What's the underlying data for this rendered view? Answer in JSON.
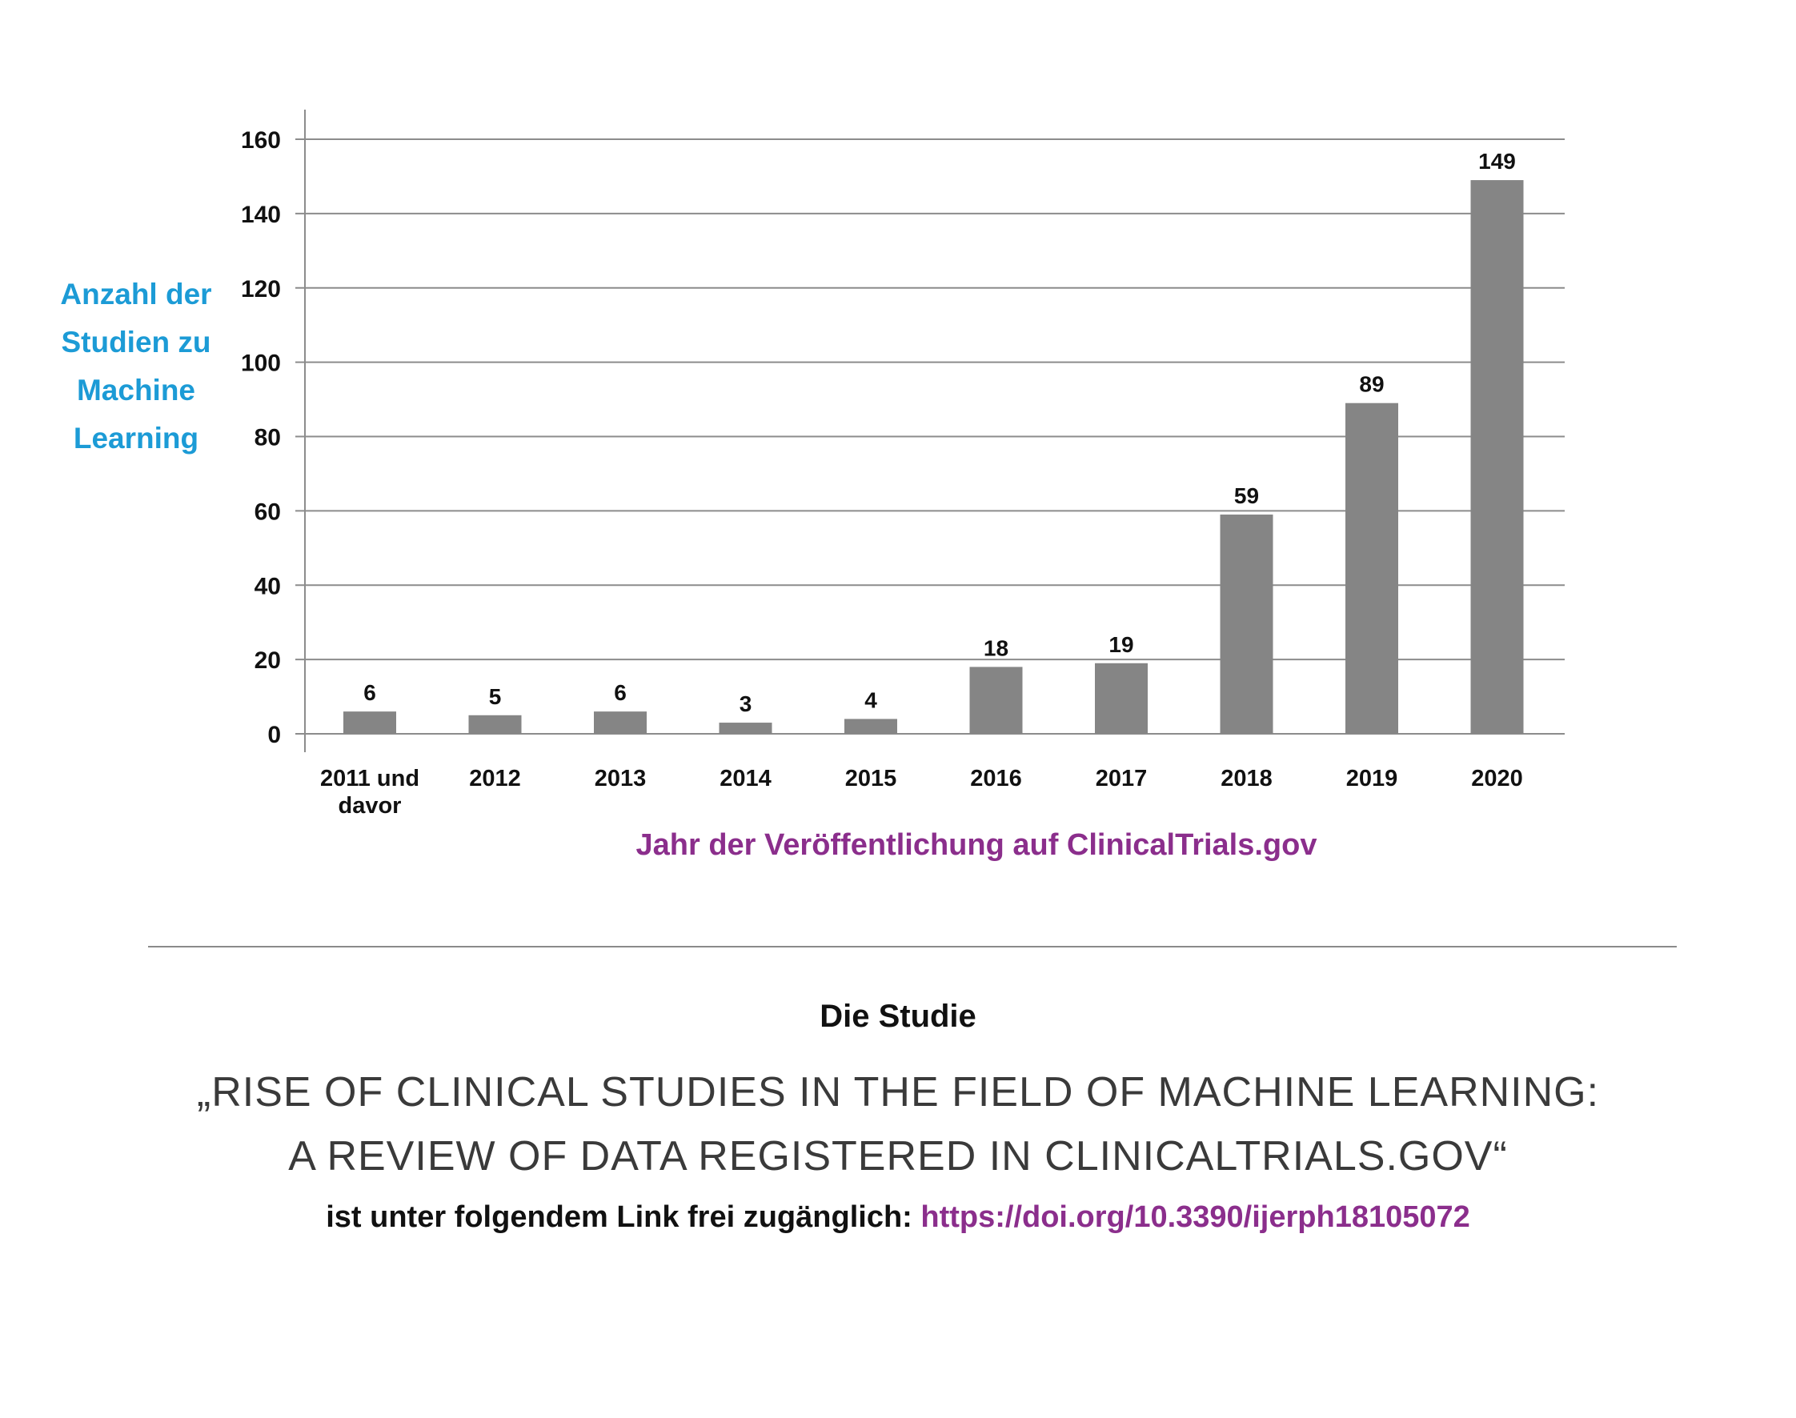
{
  "chart_data": {
    "type": "bar",
    "categories": [
      "2011 und\ndavor",
      "2012",
      "2013",
      "2014",
      "2015",
      "2016",
      "2017",
      "2018",
      "2019",
      "2020"
    ],
    "values": [
      6,
      5,
      6,
      3,
      4,
      18,
      19,
      59,
      89,
      149
    ],
    "data_labels": [
      "6",
      "5",
      "6",
      "3",
      "4",
      "18",
      "19",
      "59",
      "89",
      "149"
    ],
    "ylim": [
      0,
      160
    ],
    "yticks": [
      0,
      20,
      40,
      60,
      80,
      100,
      120,
      140,
      160
    ],
    "ylabel": "Anzahl der\nStudien zu\nMachine\nLearning",
    "xlabel": "Jahr der Veröffentlichung auf ClinicalTrials.gov",
    "grid": true,
    "bar_color": "#858585",
    "ylabel_color": "#1c9bd6",
    "xlabel_color": "#8b2e8c"
  },
  "study": {
    "heading": "Die Studie",
    "title_line1": "„RISE OF CLINICAL STUDIES IN THE FIELD OF MACHINE LEARNING:",
    "title_line2": "A REVIEW OF DATA REGISTERED IN CLINICALTRIALS.GOV“",
    "link_prefix": "ist unter folgendem Link frei zugänglich: ",
    "link_text": "https://doi.org/10.3390/ijerph18105072",
    "link_color": "#8b2e8c"
  }
}
